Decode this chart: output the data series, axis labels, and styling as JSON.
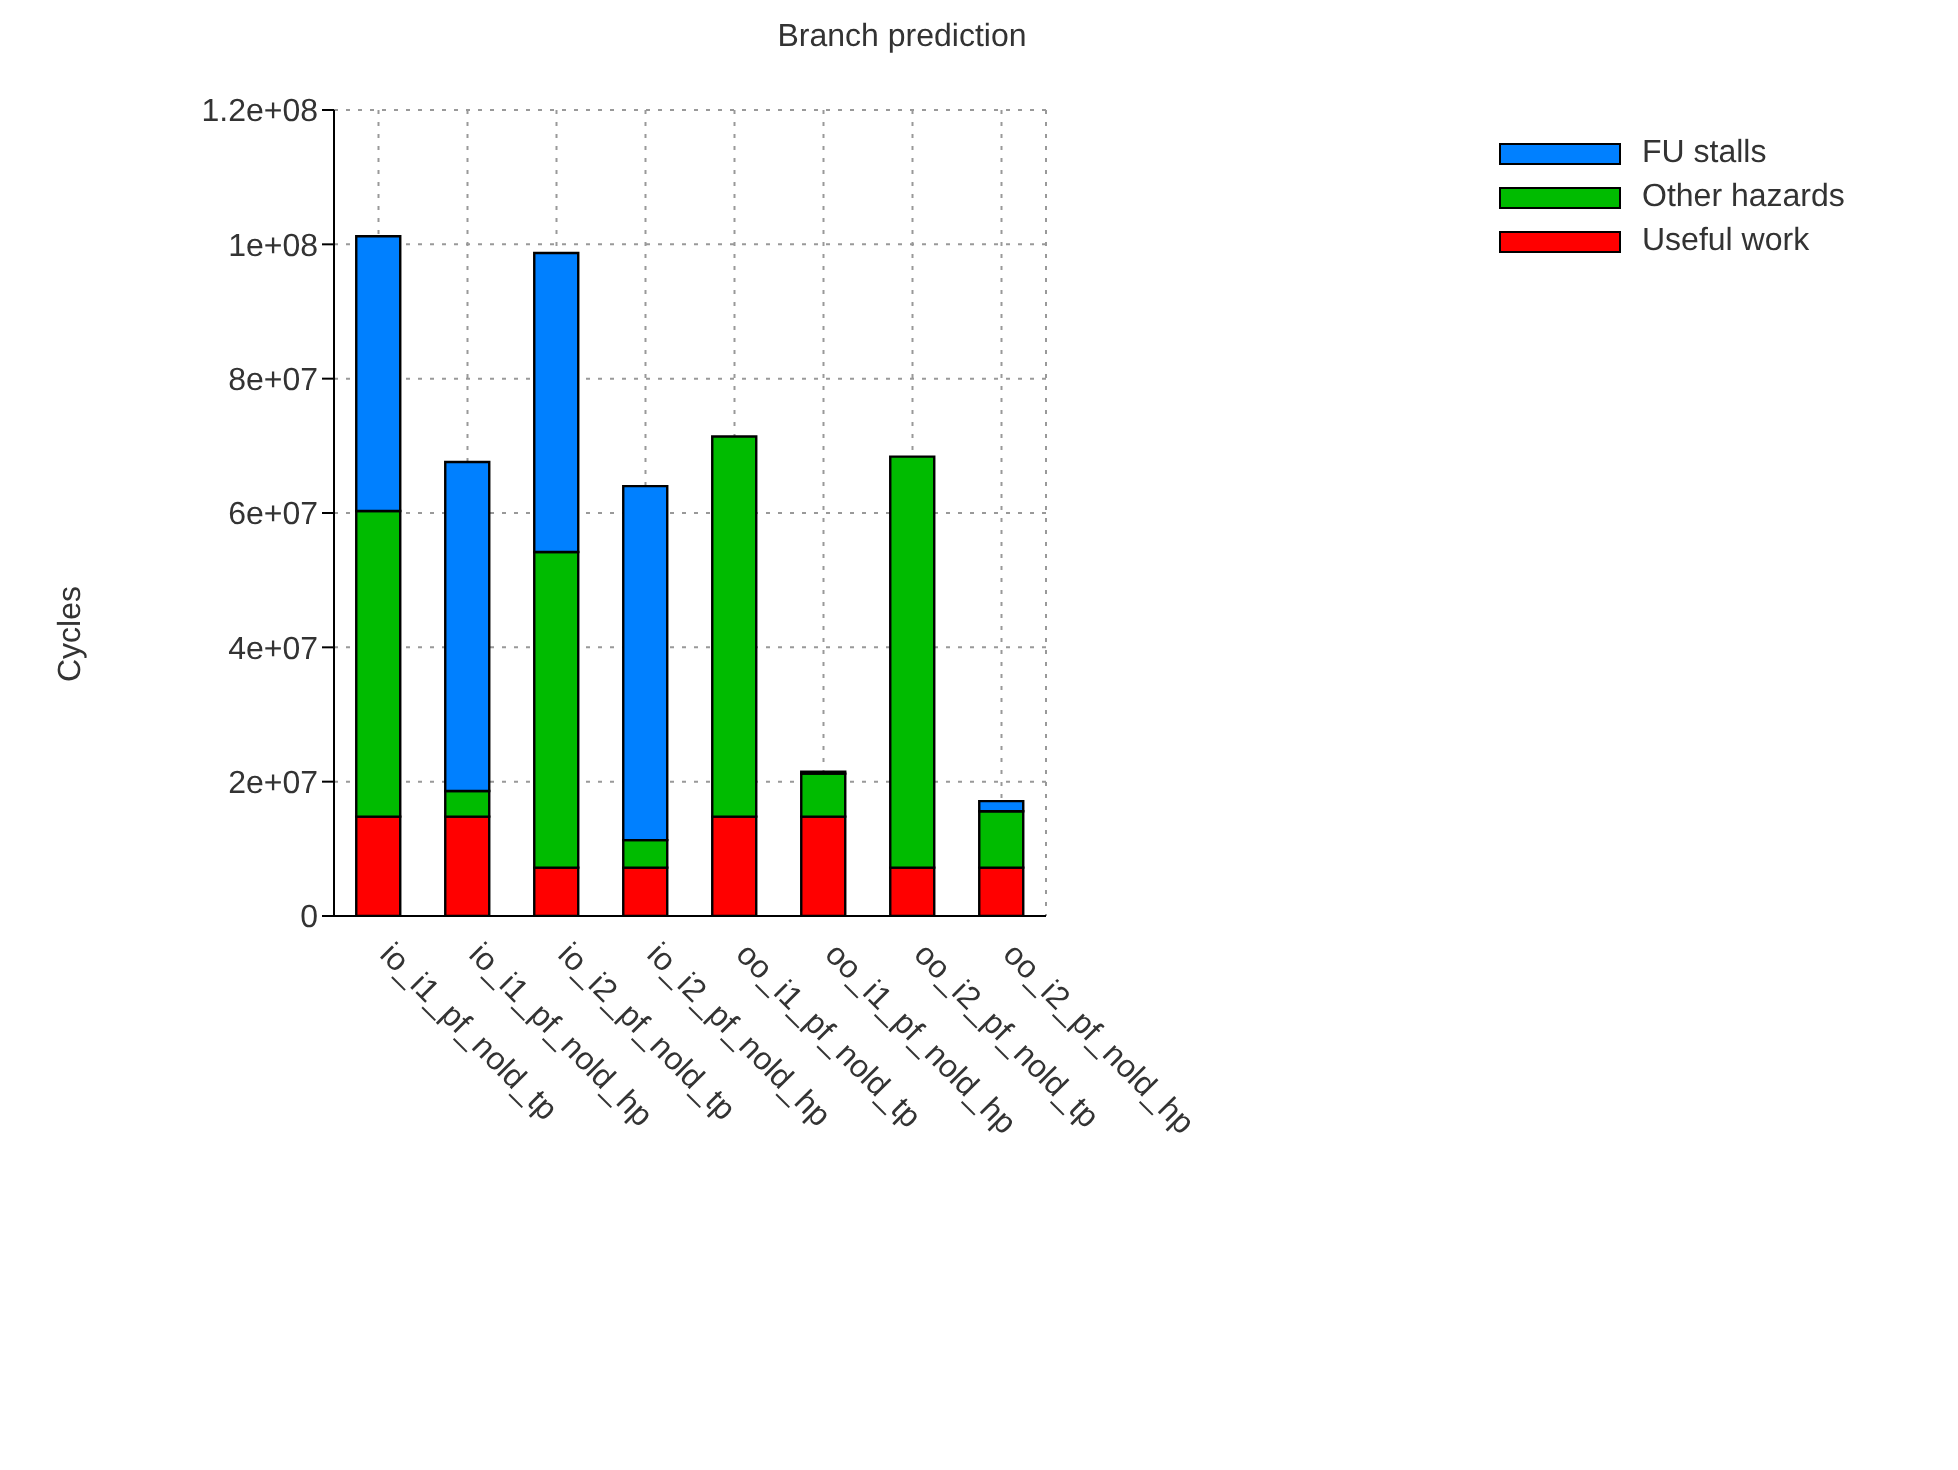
{
  "chart_data": {
    "type": "bar",
    "title": "Branch prediction",
    "ylabel": "Cycles",
    "stacked": true,
    "categories": [
      "io_i1_pf_nold_tp",
      "io_i1_pf_nold_hp",
      "io_i2_pf_nold_tp",
      "io_i2_pf_nold_hp",
      "oo_i1_pf_nold_tp",
      "oo_i1_pf_nold_hp",
      "oo_i2_pf_nold_tp",
      "oo_i2_pf_nold_hp"
    ],
    "series": [
      {
        "name": "Useful work",
        "color": "#ff0000",
        "values": [
          14800000,
          14800000,
          7200000,
          7200000,
          14800000,
          14800000,
          7200000,
          7200000
        ]
      },
      {
        "name": "Other hazards",
        "color": "#00bb00",
        "values": [
          45500000,
          3800000,
          47000000,
          4100000,
          56600000,
          6400000,
          61200000,
          8400000
        ]
      },
      {
        "name": "FU stalls",
        "color": "#0080ff",
        "values": [
          40900000,
          49000000,
          44500000,
          52700000,
          0,
          300000,
          0,
          1500000
        ]
      }
    ],
    "ylim": [
      0,
      120000000
    ],
    "yticks": [
      0,
      {
        "value": 20000000,
        "label": "2e+07"
      },
      {
        "value": 40000000,
        "label": "4e+07"
      },
      {
        "value": 60000000,
        "label": "6e+07"
      },
      {
        "value": 80000000,
        "label": "8e+07"
      },
      {
        "value": 100000000,
        "label": "1e+08"
      },
      {
        "value": 120000000,
        "label": "1.2e+08"
      }
    ],
    "grid": true,
    "legend": "top right"
  }
}
